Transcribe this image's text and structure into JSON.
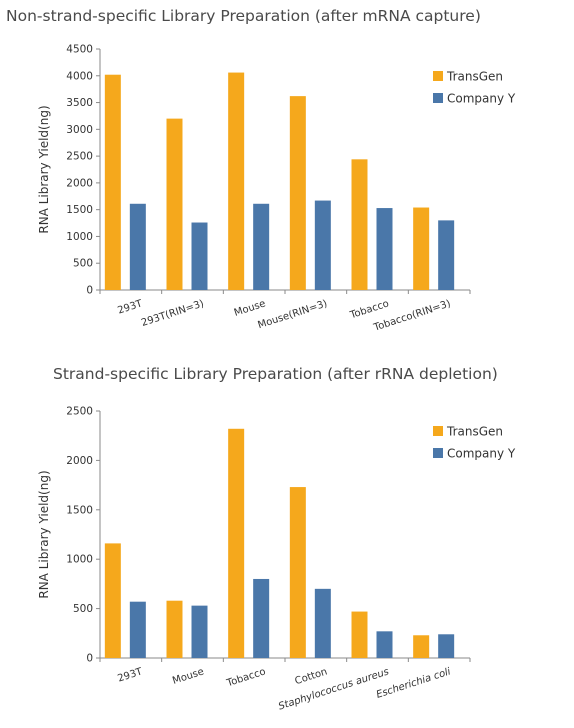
{
  "chart_data": [
    {
      "type": "bar",
      "title": "Non-strand-specific Library Preparation (after mRNA capture)",
      "xlabel": "",
      "ylabel": "RNA Library Yield(ng)",
      "categories": [
        "293T",
        "293T(RIN=3)",
        "Mouse",
        "Mouse(RIN=3)",
        "Tobacco",
        "Tobacco(RIN=3)"
      ],
      "series": [
        {
          "name": "TransGen",
          "color": "#f5a81c",
          "values": [
            4020,
            3200,
            4060,
            3620,
            2440,
            1540
          ]
        },
        {
          "name": "Company Y",
          "color": "#4a77a9",
          "values": [
            1610,
            1260,
            1610,
            1670,
            1530,
            1300
          ]
        }
      ],
      "ylim": [
        0,
        4500
      ],
      "yticks": [
        "0",
        "500",
        "1000",
        "1500",
        "2000",
        "2500",
        "3000",
        "3500",
        "4000",
        "4500"
      ],
      "grid": false,
      "legend_position": "top-right",
      "italic_categories": false
    },
    {
      "type": "bar",
      "title": "Strand-specific Library Preparation (after rRNA depletion)",
      "xlabel": "",
      "ylabel": "RNA Library Yield(ng)",
      "categories": [
        "293T",
        "Mouse",
        "Tobacco",
        "Cotton",
        "Staphylococcus aureus",
        "Escherichia coli"
      ],
      "series": [
        {
          "name": "TransGen",
          "color": "#f5a81c",
          "values": [
            1160,
            580,
            2320,
            1730,
            470,
            230
          ]
        },
        {
          "name": "Company Y",
          "color": "#4a77a9",
          "values": [
            570,
            530,
            800,
            700,
            270,
            240
          ]
        }
      ],
      "ylim": [
        0,
        2500
      ],
      "yticks": [
        "0",
        "500",
        "1000",
        "1500",
        "2000",
        "2500"
      ],
      "grid": false,
      "legend_position": "top-right",
      "italic_categories": true
    }
  ]
}
